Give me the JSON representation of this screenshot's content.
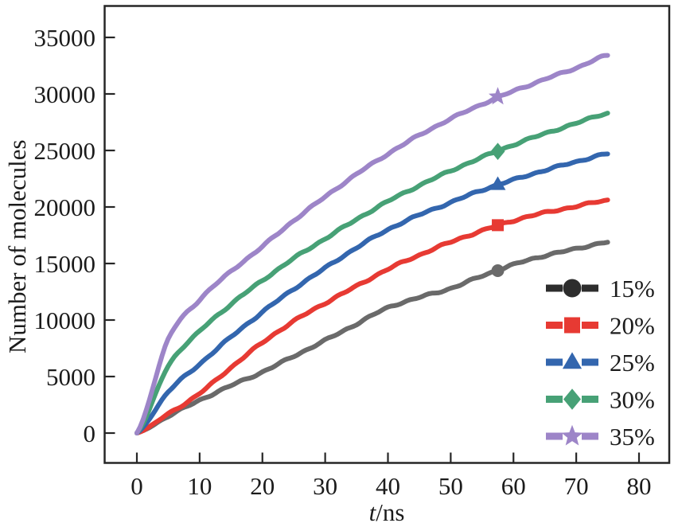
{
  "figure": {
    "ylabel": "Number of molecules",
    "xlabel_prefix": "t",
    "xlabel_suffix": "/ns"
  },
  "chart_data": {
    "type": "line",
    "title": "",
    "xlabel": "t/ns",
    "ylabel": "Number of molecules",
    "grid": false,
    "legend_position": "inside lower right",
    "xlim": [
      -5.2,
      84.8
    ],
    "ylim": [
      -2620,
      37820
    ],
    "x_ticks": [
      0,
      10,
      20,
      30,
      40,
      50,
      60,
      70,
      80
    ],
    "y_ticks": [
      0,
      5000,
      10000,
      15000,
      20000,
      25000,
      30000,
      35000
    ],
    "x": [
      0,
      5,
      10,
      15,
      20,
      25,
      30,
      35,
      40,
      45,
      50,
      55,
      60,
      65,
      70,
      75
    ],
    "marker_t": 57.5,
    "series": [
      {
        "name": "15%",
        "color": "#6a6a6a",
        "legend_color": "#2d2d2d",
        "marker": "circle",
        "values": [
          0,
          1500,
          2900,
          4200,
          5400,
          6800,
          8200,
          9650,
          11100,
          12000,
          12800,
          13900,
          14900,
          15700,
          16300,
          16900
        ]
      },
      {
        "name": "20%",
        "color": "#e73a33",
        "marker": "square",
        "values": [
          0,
          1700,
          3500,
          5800,
          8000,
          9900,
          11500,
          13000,
          14500,
          15750,
          16900,
          17900,
          18800,
          19500,
          20050,
          20600
        ]
      },
      {
        "name": "25%",
        "color": "#3366ae",
        "marker": "triangle",
        "values": [
          0,
          3650,
          6100,
          8500,
          10700,
          12750,
          14600,
          16400,
          18000,
          19300,
          20400,
          21500,
          22400,
          23250,
          24000,
          24700
        ]
      },
      {
        "name": "30%",
        "color": "#47a176",
        "marker": "diamond",
        "values": [
          0,
          5950,
          9000,
          11400,
          13500,
          15450,
          17200,
          18900,
          20500,
          21900,
          23200,
          24400,
          25500,
          26500,
          27400,
          28300
        ]
      },
      {
        "name": "35%",
        "color": "#9d85c8",
        "marker": "star",
        "values": [
          0,
          8300,
          11800,
          14300,
          16500,
          18800,
          20900,
          22900,
          24700,
          26350,
          27800,
          29100,
          30250,
          31300,
          32300,
          33400
        ]
      }
    ]
  },
  "style": {
    "frame_color": "#262626",
    "text_color": "#1b1b1b"
  }
}
